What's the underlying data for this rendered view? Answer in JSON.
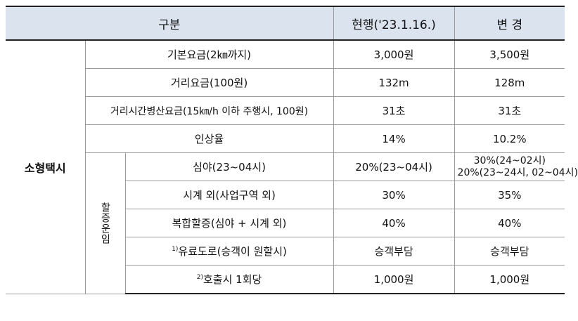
{
  "header": {
    "category": "구분",
    "current": "현행('23.1.16.)",
    "changed": "변 경"
  },
  "group_label": "소형택시",
  "surcharge_label": "할증운임",
  "rows": [
    {
      "item": "기본요금(2㎞까지)",
      "current": "3,000원",
      "changed": "3,500원"
    },
    {
      "item": "거리요금(100원)",
      "current": "132m",
      "changed": "128m"
    },
    {
      "item": "거리시간병산요금(15㎞/h 이하 주행시, 100원)",
      "current": "31초",
      "changed": "31초"
    },
    {
      "item": "인상율",
      "current": "14%",
      "changed": "10.2%"
    }
  ],
  "surcharge_rows": [
    {
      "item": "심야(23~04시)",
      "current": "20%(23~04시)",
      "changed": "30%(24~02시)",
      "changed_line2": "20%(23~24시, 02~04시)"
    },
    {
      "item": "시계 외(사업구역 외)",
      "current": "30%",
      "changed": "35%"
    },
    {
      "item": "복합할증(심야 + 시계 외)",
      "current": "40%",
      "changed": "40%"
    },
    {
      "note": "1)",
      "item": "유료도로(승객이 원할시)",
      "current": "승객부담",
      "changed": "승객부담"
    },
    {
      "note": "2)",
      "item": "호출시 1회당",
      "current": "1,000원",
      "changed": "1,000원"
    }
  ]
}
